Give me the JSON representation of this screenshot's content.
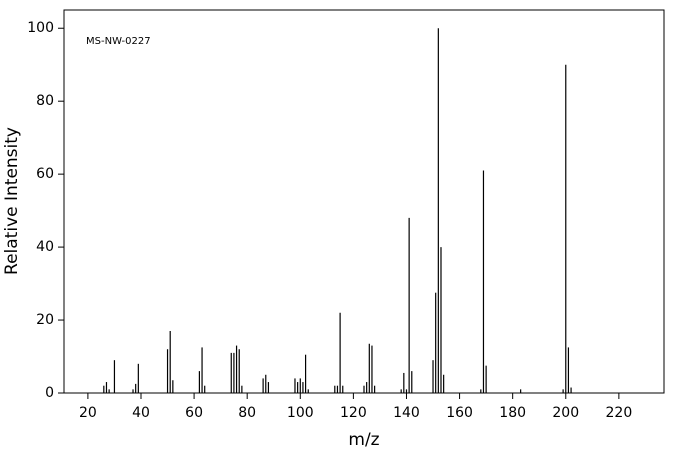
{
  "chart_data": {
    "type": "bar",
    "annotation": "MS-NW-0227",
    "xlabel": "m/z",
    "ylabel": "Relative Intensity",
    "x": [
      26,
      27,
      28,
      30,
      37,
      38,
      39,
      50,
      51,
      52,
      62,
      63,
      64,
      74,
      75,
      76,
      77,
      78,
      86,
      87,
      88,
      98,
      99,
      100,
      101,
      102,
      103,
      113,
      114,
      115,
      116,
      124,
      125,
      126,
      127,
      128,
      138,
      139,
      140,
      141,
      142,
      150,
      151,
      152,
      153,
      154,
      168,
      169,
      170,
      183,
      199,
      200,
      201,
      202
    ],
    "values": [
      2,
      3,
      1,
      9,
      1,
      2.5,
      8,
      12,
      17,
      3.5,
      6,
      12.5,
      2,
      11,
      11,
      13,
      12,
      2,
      4,
      5,
      3,
      4,
      3,
      4,
      3,
      10.5,
      1,
      2,
      2,
      22,
      2,
      2,
      3,
      13.5,
      13,
      2,
      1,
      5.5,
      1,
      48,
      6,
      9,
      27.5,
      100,
      40,
      5,
      1,
      61,
      7.5,
      1,
      1,
      90,
      12.5,
      1.5
    ],
    "color": "#000000",
    "xlim": [
      11,
      237
    ],
    "xticks": [
      20,
      40,
      60,
      80,
      100,
      120,
      140,
      160,
      180,
      200,
      220
    ],
    "ylim": [
      0,
      105
    ],
    "yticks": [
      0,
      20,
      40,
      60,
      80,
      100
    ]
  }
}
